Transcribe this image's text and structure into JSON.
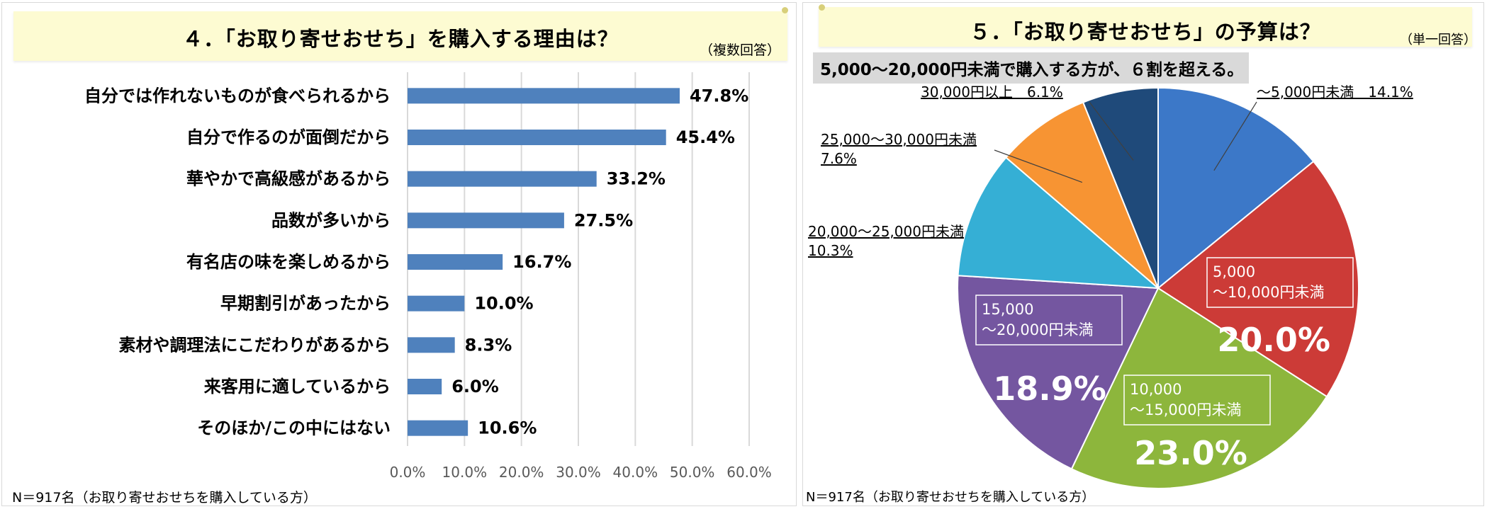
{
  "left_panel": {
    "title": "４．「お取り寄せおせち」を購入する理由は？",
    "note": "（複数回答）",
    "footer": "N＝917名（お取り寄せおせちを購入している方）"
  },
  "right_panel": {
    "title": "５．「お取り寄せおせち」の予算は？",
    "note": "（単一回答）",
    "subtitle": "5,000～20,000円未満で購入する方が、６割を超える。",
    "footer": "N＝917名（お取り寄せおせちを購入している方）"
  },
  "chart_data": [
    {
      "type": "bar",
      "orientation": "horizontal",
      "title": "４．「お取り寄せおせち」を購入する理由は？",
      "categories": [
        "自分では作れないものが食べられるから",
        "自分で作るのが面倒だから",
        "華やかで高級感があるから",
        "品数が多いから",
        "有名店の味を楽しめるから",
        "早期割引があったから",
        "素材や調理法にこだわりがあるから",
        "来客用に適しているから",
        "そのほか/この中にはない"
      ],
      "values": [
        47.8,
        45.4,
        33.2,
        27.5,
        16.7,
        10.0,
        8.3,
        6.0,
        10.6
      ],
      "value_labels": [
        "47.8%",
        "45.4%",
        "33.2%",
        "27.5%",
        "16.7%",
        "10.0%",
        "8.3%",
        "6.0%",
        "10.6%"
      ],
      "xlim": [
        0,
        60
      ],
      "xticks": [
        "0.0%",
        "10.0%",
        "20.0%",
        "30.0%",
        "40.0%",
        "50.0%",
        "60.0%"
      ],
      "grid": true,
      "bar_color": "#4f81bd",
      "highlight_label_color": "#ff0000"
    },
    {
      "type": "pie",
      "title": "５．「お取り寄せおせち」の予算は？",
      "slices": [
        {
          "label": "～5,000円未満",
          "label_lines": [
            "～5,000円未満　14.1%"
          ],
          "value": 14.1,
          "value_label": "14.1%",
          "color": "#3c78c8",
          "label_style": "outside"
        },
        {
          "label": "5,000～10,000円未満",
          "label_lines": [
            "5,000",
            "～10,000円未満"
          ],
          "value": 20.0,
          "value_label": "20.0%",
          "color": "#cc3b37",
          "label_style": "inside"
        },
        {
          "label": "10,000～15,000円未満",
          "label_lines": [
            "10,000",
            "～15,000円未満"
          ],
          "value": 23.0,
          "value_label": "23.0%",
          "color": "#8db63c",
          "label_style": "inside"
        },
        {
          "label": "15,000～20,000円未満",
          "label_lines": [
            "15,000",
            "～20,000円未満"
          ],
          "value": 18.9,
          "value_label": "18.9%",
          "color": "#7456a0",
          "label_style": "inside"
        },
        {
          "label": "20,000～25,000円未満",
          "label_lines": [
            "20,000～25,000円未満",
            "10.3%"
          ],
          "value": 10.3,
          "value_label": "10.3%",
          "color": "#35afd5",
          "label_style": "outside"
        },
        {
          "label": "25,000～30,000円未満",
          "label_lines": [
            "25,000～30,000円未満",
            "7.6%"
          ],
          "value": 7.6,
          "value_label": "7.6%",
          "color": "#f79433",
          "label_style": "outside"
        },
        {
          "label": "30,000円以上",
          "label_lines": [
            "30,000円以上　6.1%"
          ],
          "value": 6.1,
          "value_label": "6.1%",
          "color": "#1f4a7a",
          "label_style": "outside"
        }
      ],
      "start": "12 o'clock",
      "direction": "clockwise"
    }
  ]
}
